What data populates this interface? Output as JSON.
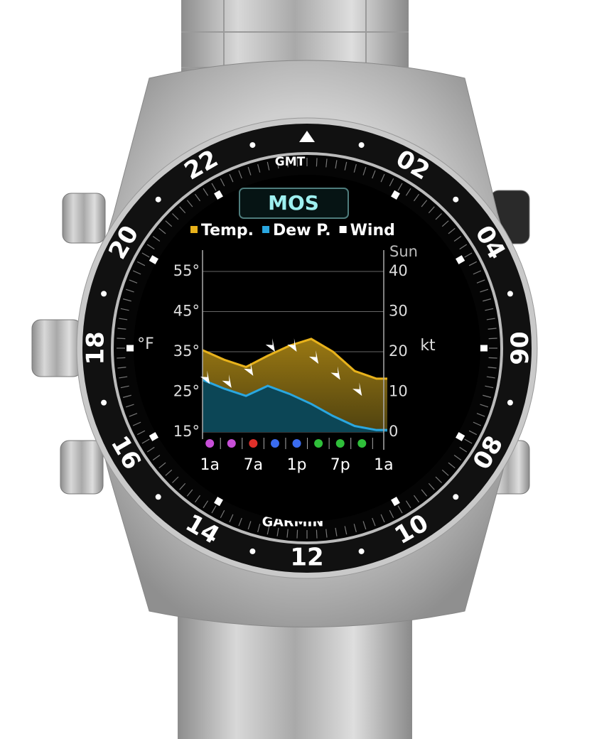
{
  "watch": {
    "top_label": "GMT",
    "brand": "GARMIN",
    "bezel_numbers": [
      "02",
      "04",
      "06",
      "08",
      "10",
      "12",
      "14",
      "16",
      "18",
      "20",
      "22"
    ]
  },
  "chart_data": {
    "type": "line",
    "title": "MOS",
    "day_label": "Sun",
    "y_label": "°F",
    "y2_label": "kt",
    "xlim": [
      -1,
      24.5
    ],
    "xticks": [
      {
        "value": 0,
        "label": "1a"
      },
      {
        "value": 6,
        "label": "7a"
      },
      {
        "value": 12,
        "label": "1p"
      },
      {
        "value": 18,
        "label": "7p"
      },
      {
        "value": 24,
        "label": "1a"
      }
    ],
    "ylim": [
      15,
      55
    ],
    "yticks": [
      {
        "value": 15,
        "label": "15°"
      },
      {
        "value": 25,
        "label": "25°"
      },
      {
        "value": 35,
        "label": "35°"
      },
      {
        "value": 45,
        "label": "45°"
      },
      {
        "value": 55,
        "label": "55°"
      }
    ],
    "y2lim": [
      0,
      40
    ],
    "y2ticks": [
      0,
      10,
      20,
      30,
      40
    ],
    "grid": true,
    "series": [
      {
        "name": "Temp.",
        "color": "#e8b21b",
        "x": [
          -1,
          2,
          5,
          8,
          11,
          14,
          17,
          20,
          23,
          24.5
        ],
        "values": [
          35.4,
          33,
          31.2,
          34,
          36.5,
          38.2,
          35,
          30.2,
          28.3,
          28.3
        ]
      },
      {
        "name": "Dew P.",
        "color": "#2aa7e0",
        "x": [
          -1,
          2,
          5,
          8,
          11,
          14,
          17,
          20,
          23,
          24.5
        ],
        "values": [
          28,
          25.8,
          24,
          26.5,
          24.5,
          22,
          19,
          16.5,
          15.5,
          15.5
        ]
      },
      {
        "name": "Wind",
        "color": "#ffffff",
        "axis": "y2",
        "x": [
          0,
          3,
          6,
          9,
          12,
          15,
          18,
          21
        ],
        "values": [
          12,
          11,
          14,
          20,
          20,
          17,
          13,
          9
        ]
      }
    ],
    "weather_colors": [
      "#c84fd8",
      "#c84fd8",
      "#e0302a",
      "#3a6cf0",
      "#3a6cf0",
      "#2fbf3a",
      "#2fbf3a",
      "#2fbf3a"
    ]
  }
}
